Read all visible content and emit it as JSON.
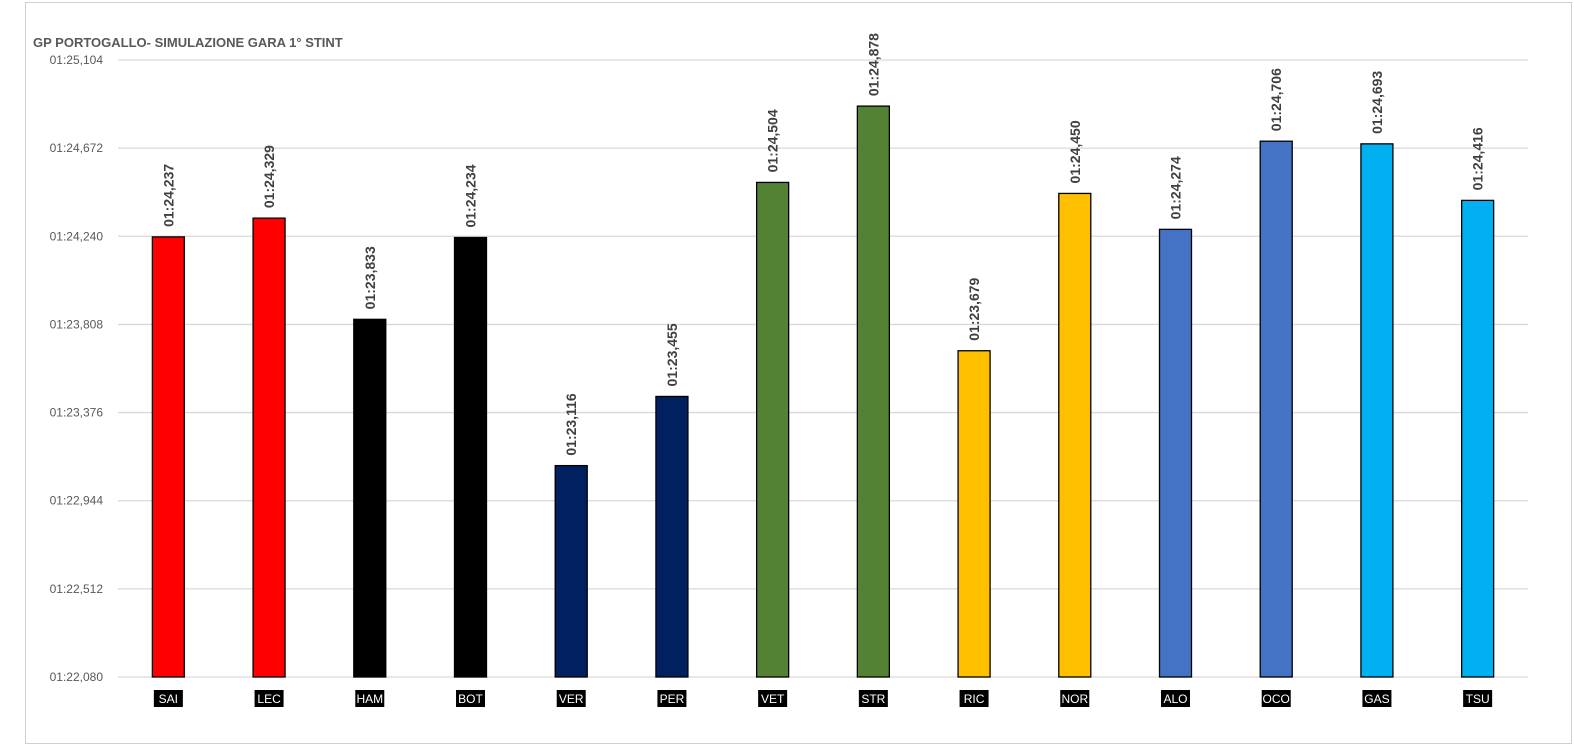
{
  "chart_data": {
    "type": "bar",
    "title": "GP PORTOGALLO- SIMULAZIONE GARA 1° STINT",
    "xlabel": "",
    "ylabel": "",
    "ylim": [
      82.08,
      85.104
    ],
    "yticks": [
      82.08,
      82.512,
      82.944,
      83.376,
      83.808,
      84.24,
      84.672,
      85.104
    ],
    "ytick_labels": [
      "01:22,080",
      "01:22,512",
      "01:22,944",
      "01:23,376",
      "01:23,808",
      "01:24,240",
      "01:24,672",
      "01:25,104"
    ],
    "grid": true,
    "categories": [
      "SAI",
      "LEC",
      "HAM",
      "BOT",
      "VER",
      "PER",
      "VET",
      "STR",
      "RIC",
      "NOR",
      "ALO",
      "OCO",
      "GAS",
      "TSU"
    ],
    "values": [
      84.237,
      84.329,
      83.833,
      84.234,
      83.116,
      83.455,
      84.504,
      84.878,
      83.679,
      84.45,
      84.274,
      84.706,
      84.693,
      84.416
    ],
    "data_labels": [
      "01:24,237",
      "01:24,329",
      "01:23,833",
      "01:24,234",
      "01:23,116",
      "01:23,455",
      "01:24,504",
      "01:24,878",
      "01:23,679",
      "01:24,450",
      "01:24,274",
      "01:24,706",
      "01:24,693",
      "01:24,416"
    ],
    "colors": [
      "#FF0000",
      "#FF0000",
      "#000000",
      "#000000",
      "#002060",
      "#002060",
      "#548235",
      "#548235",
      "#FFC000",
      "#FFC000",
      "#4472C4",
      "#4472C4",
      "#00B0F0",
      "#00B0F0"
    ]
  }
}
